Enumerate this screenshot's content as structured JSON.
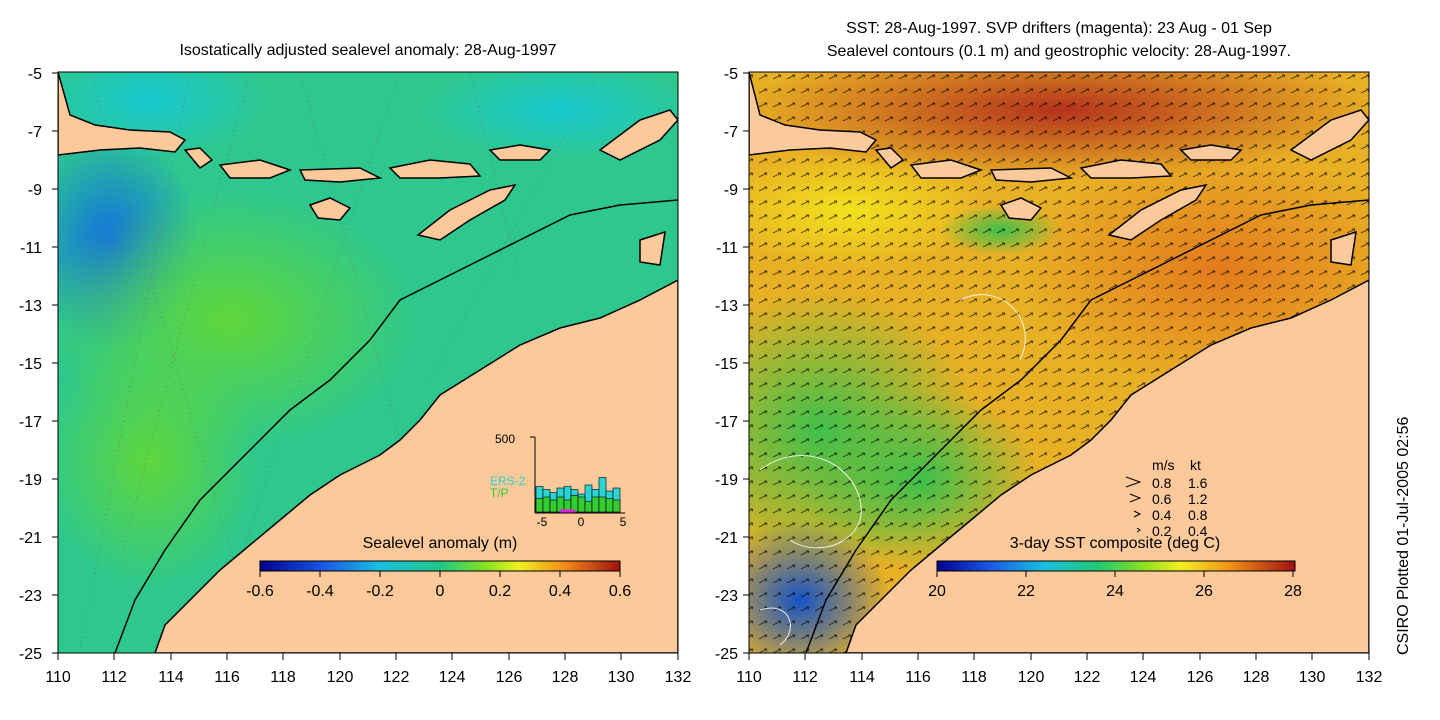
{
  "left_panel": {
    "title": "Isostatically adjusted sealevel anomaly: 28-Aug-1997",
    "colorbar": {
      "label": "Sealevel anomaly (m)",
      "ticks": [
        "-0.6",
        "-0.4",
        "-0.2",
        "0",
        "0.2",
        "0.4",
        "0.6"
      ]
    },
    "histogram": {
      "y_max_label": "500",
      "x_ticks": [
        "-5",
        "0",
        "5"
      ],
      "series_labels": [
        "ERS-2",
        "T/P"
      ],
      "ers2_counts": [
        170,
        150,
        130,
        160,
        170,
        150,
        120,
        180,
        150,
        230,
        140,
        160
      ],
      "tp_counts": [
        90,
        100,
        80,
        100,
        80,
        110,
        100,
        70,
        100,
        100,
        90,
        80
      ]
    }
  },
  "right_panel": {
    "title_line1": "SST: 28-Aug-1997. SVP drifters (magenta): 23 Aug - 01 Sep",
    "title_line2": "Sealevel contours (0.1 m) and geostrophic velocity: 28-Aug-1997.",
    "colorbar": {
      "label": "3-day SST composite (deg C)",
      "ticks": [
        "20",
        "22",
        "24",
        "26",
        "28"
      ]
    },
    "velocity_legend": {
      "header_ms": "m/s",
      "header_kt": "kt",
      "rows": [
        {
          "ms": "0.8",
          "kt": "1.6"
        },
        {
          "ms": "0.6",
          "kt": "1.2"
        },
        {
          "ms": "0.4",
          "kt": "0.8"
        },
        {
          "ms": "0.2",
          "kt": "0.4"
        }
      ]
    }
  },
  "axes": {
    "lat_ticks": [
      "-5",
      "-7",
      "-9",
      "-11",
      "-13",
      "-15",
      "-17",
      "-19",
      "-21",
      "-23",
      "-25"
    ],
    "lon_ticks": [
      "110",
      "112",
      "114",
      "116",
      "118",
      "120",
      "122",
      "124",
      "126",
      "128",
      "130",
      "132"
    ]
  },
  "credit": "CSIRO Plotted 01-Jul-2005 02:56",
  "colors": {
    "land": "#fbc99a",
    "ocean_left": "#2fc98c",
    "ocean_right": "#e8b025"
  }
}
